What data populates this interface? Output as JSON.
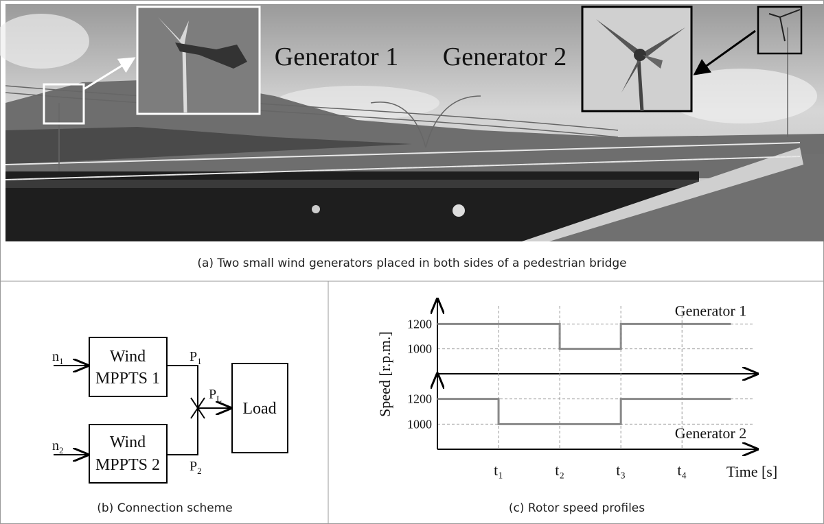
{
  "photo": {
    "labels": [
      "Generator 1",
      "Generator 2"
    ],
    "caption": "(a) Two small wind generators placed in both sides of a pedestrian bridge"
  },
  "scheme": {
    "inputs": [
      {
        "symbol": "n",
        "index": "1"
      },
      {
        "symbol": "n",
        "index": "2"
      }
    ],
    "blocks": [
      [
        "Wind",
        "MPPTS 1"
      ],
      [
        "Wind",
        "MPPTS 2"
      ]
    ],
    "outputs": [
      {
        "symbol": "P",
        "index": "1"
      },
      {
        "symbol": "P",
        "index": "2"
      }
    ],
    "load_power": {
      "symbol": "P",
      "index": "L"
    },
    "load": "Load",
    "caption": "(b) Connection scheme"
  },
  "chart_caption": "(c) Rotor speed profiles",
  "chart_data": [
    {
      "type": "step",
      "y_label": "Speed [r.p.m.]",
      "series": [
        {
          "name": "Generator 1",
          "color": "#888888",
          "x": [
            0,
            2,
            2,
            3,
            3,
            4.8
          ],
          "values": [
            1200,
            1200,
            1000,
            1000,
            1200,
            1200
          ]
        }
      ],
      "xlim": [
        0,
        5.3
      ],
      "ylim": [
        800,
        1400
      ],
      "yticks": [
        1000,
        1200
      ],
      "grid": true
    },
    {
      "type": "step",
      "x_label": "Time [s]",
      "series": [
        {
          "name": "Generator 2",
          "color": "#888888",
          "x": [
            0,
            1,
            1,
            3,
            3,
            4.8
          ],
          "values": [
            1200,
            1200,
            1000,
            1000,
            1200,
            1200
          ]
        }
      ],
      "xlim": [
        0,
        5.3
      ],
      "ylim": [
        800,
        1400
      ],
      "yticks": [
        1000,
        1200
      ],
      "xticks": [
        {
          "value": 1,
          "label": "t₁"
        },
        {
          "value": 2,
          "label": "t₂"
        },
        {
          "value": 3,
          "label": "t₃"
        },
        {
          "value": 4,
          "label": "t₄"
        }
      ],
      "grid": true
    }
  ]
}
